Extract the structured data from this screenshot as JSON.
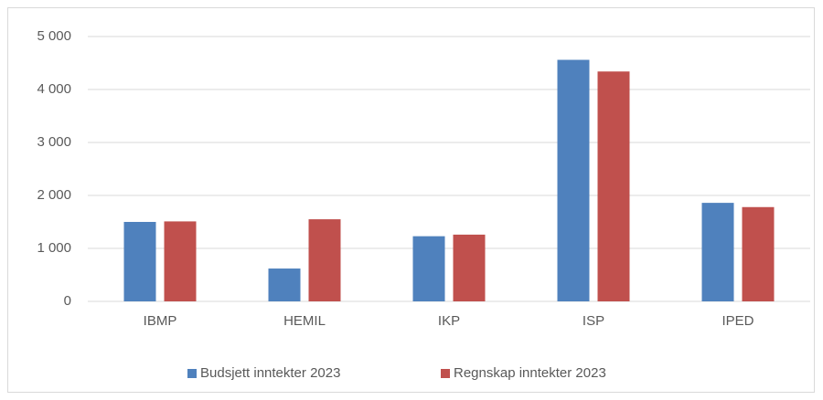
{
  "chart_data": {
    "type": "bar",
    "categories": [
      "IBMP",
      "HEMIL",
      "IKP",
      "ISP",
      "IPED"
    ],
    "series": [
      {
        "name": "Budsjett inntekter 2023",
        "color": "#4f81bd",
        "values": [
          1500,
          620,
          1230,
          4560,
          1860
        ]
      },
      {
        "name": "Regnskap inntekter 2023",
        "color": "#c0504d",
        "values": [
          1510,
          1550,
          1260,
          4340,
          1780
        ]
      }
    ],
    "ylim": [
      0,
      5000
    ],
    "yticks": [
      0,
      {
        "value": 1000,
        "label": "1 000"
      },
      {
        "value": 2000,
        "label": "2 000"
      },
      {
        "value": 3000,
        "label": "3 000"
      },
      {
        "value": 4000,
        "label": "4 000"
      },
      {
        "value": 5000,
        "label": "5 000"
      }
    ],
    "grid": true,
    "legend": "bottom"
  }
}
